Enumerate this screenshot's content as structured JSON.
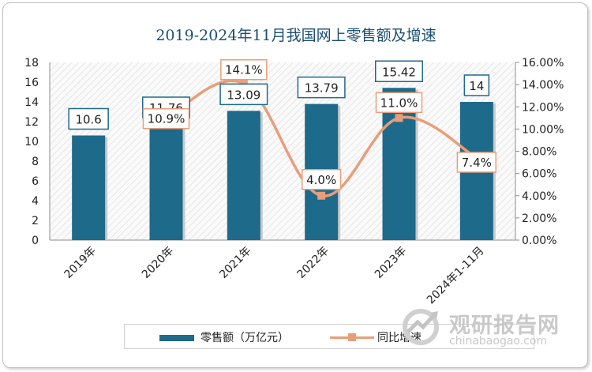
{
  "title": "2019-2024年11月我国网上零售额及增速",
  "chart_data": {
    "type": "bar",
    "categories": [
      "2019年",
      "2020年",
      "2021年",
      "2022年",
      "2023年",
      "2024年1-11月"
    ],
    "series": [
      {
        "name": "零售额（万亿元）",
        "type": "bar",
        "axis": "left",
        "values": [
          10.6,
          11.76,
          13.09,
          13.79,
          15.42,
          14
        ],
        "labels": [
          "10.6",
          "11.76",
          "13.09",
          "13.79",
          "15.42",
          "14"
        ],
        "color": "#1e6a8a"
      },
      {
        "name": "同比增速",
        "type": "line",
        "axis": "right",
        "values": [
          null,
          10.9,
          14.1,
          4.0,
          11.0,
          7.4
        ],
        "labels": [
          "",
          "10.9%",
          "14.1%",
          "4.0%",
          "11.0%",
          "7.4%"
        ],
        "color": "#e89e7a"
      }
    ],
    "y_left": {
      "min": 0,
      "max": 18,
      "ticks": [
        "0",
        "2",
        "4",
        "6",
        "8",
        "10",
        "12",
        "14",
        "16",
        "18"
      ]
    },
    "y_right": {
      "min": 0,
      "max": 16,
      "ticks": [
        "0.00%",
        "2.00%",
        "4.00%",
        "6.00%",
        "8.00%",
        "10.00%",
        "12.00%",
        "14.00%",
        "16.00%"
      ]
    },
    "legend_position": "bottom",
    "grid": false
  },
  "watermark": {
    "brand_cn": "观研报告网",
    "brand_en": "chinabaogao.com"
  }
}
